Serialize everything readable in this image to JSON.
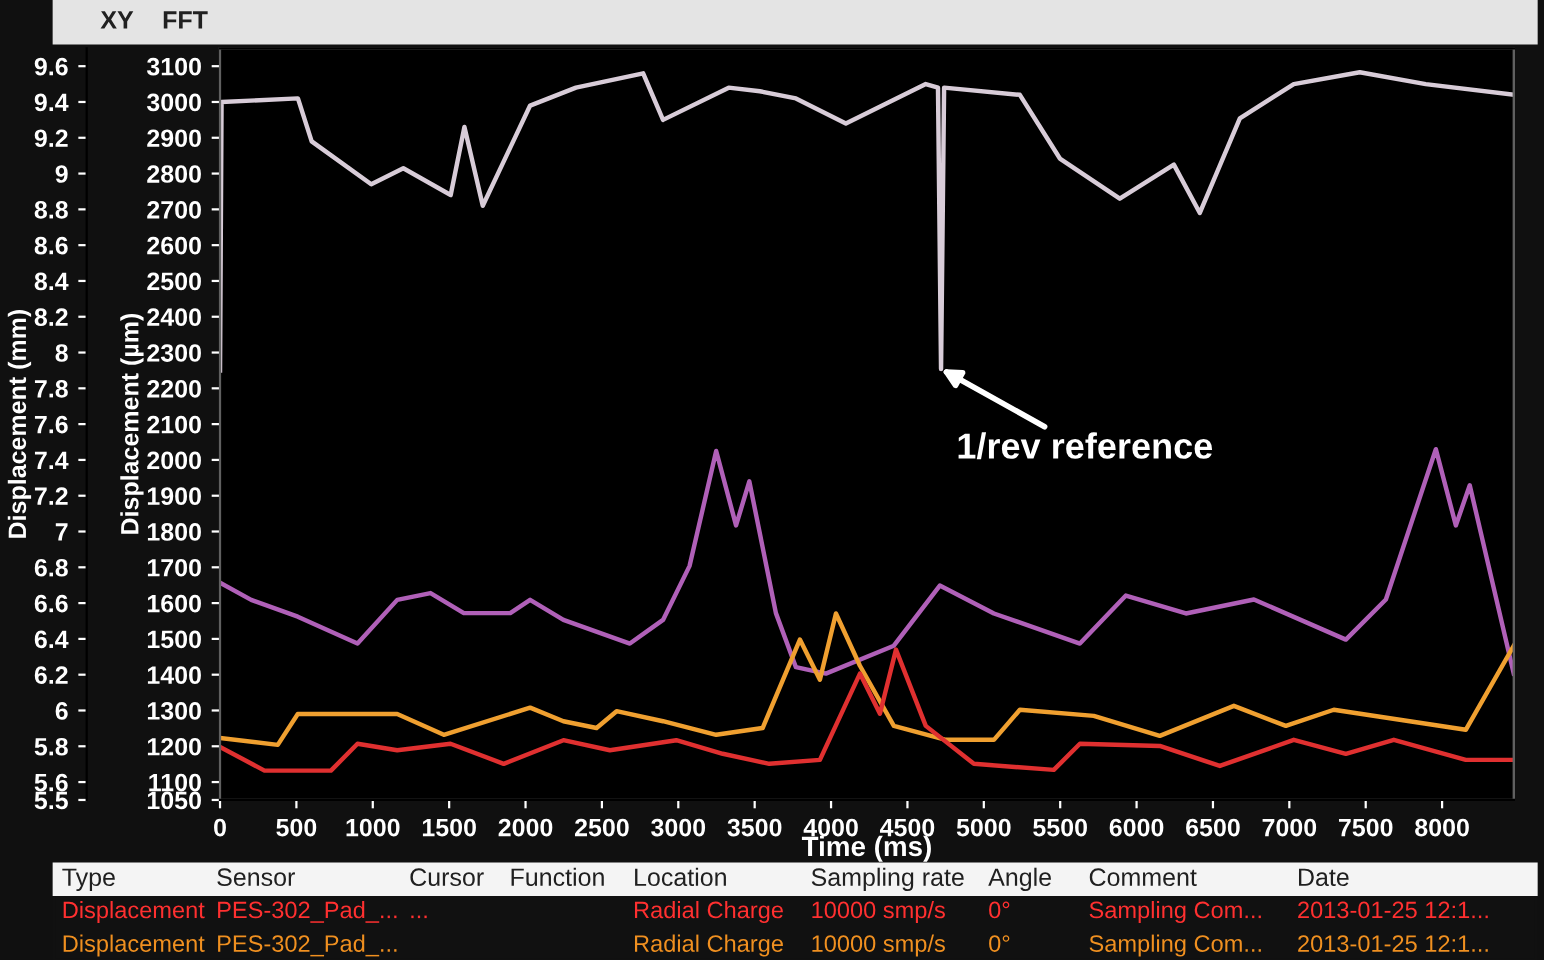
{
  "chart_data": {
    "type": "line",
    "xlabel": "Time (ms)",
    "ylabel": "Displacement (µm)",
    "y2label": "Displacement (mm)",
    "xlim": [
      0,
      8470
    ],
    "xticks": [
      0,
      500,
      1000,
      1500,
      2000,
      2500,
      3000,
      3500,
      4000,
      4500,
      5000,
      5500,
      6000,
      6500,
      7000,
      7500,
      8000
    ],
    "ylim": [
      1050,
      3150
    ],
    "yticks": [
      1050,
      1100,
      1200,
      1300,
      1400,
      1500,
      1600,
      1700,
      1800,
      1900,
      2000,
      2100,
      2200,
      2300,
      2400,
      2500,
      2600,
      2700,
      2800,
      2900,
      3000,
      3100
    ],
    "y2lim": [
      5.5,
      9.7
    ],
    "y2ticks": [
      5.5,
      5.6,
      5.8,
      6,
      6.2,
      6.4,
      6.6,
      6.8,
      7,
      7.2,
      7.4,
      7.6,
      7.8,
      8,
      8.2,
      8.4,
      8.6,
      8.8,
      9,
      9.2,
      9.4,
      9.6
    ],
    "grid": false,
    "legend": false,
    "marker": "none",
    "line_style": "solid",
    "series": [
      {
        "color": "#d8ccd8",
        "x": [
          0,
          10,
          510,
          600,
          990,
          1200,
          1510,
          1600,
          1720,
          2030,
          2330,
          2770,
          2900,
          3330,
          3534,
          3770,
          4097,
          4620,
          4700,
          4720,
          4740,
          5236,
          5498,
          5890,
          6244,
          6414,
          6676,
          7029,
          7461,
          7893,
          8469
        ],
        "values": [
          2250,
          3000,
          3010,
          2890,
          2770,
          2815,
          2740,
          2930,
          2710,
          2990,
          3040,
          3080,
          2950,
          3040,
          3030,
          3010,
          2940,
          3050,
          3040,
          2254,
          3040,
          3020,
          2842,
          2730,
          2825,
          2690,
          2954,
          3050,
          3083,
          3050,
          3020
        ]
      },
      {
        "color": "#b060b8",
        "x": [
          0,
          204,
          509,
          900,
          1160,
          1378,
          1596,
          1900,
          2030,
          2248,
          2683,
          2900,
          3074,
          3248,
          3378,
          3465,
          3639,
          3770,
          3966,
          4411,
          4712,
          5066,
          5629,
          5930,
          6323,
          6768,
          7370,
          7632,
          7959,
          8090,
          8181,
          8469
        ],
        "values": [
          1657,
          1609,
          1562,
          1487,
          1609,
          1628,
          1572,
          1572,
          1609,
          1553,
          1487,
          1553,
          1704,
          2025,
          1817,
          1940,
          1572,
          1421,
          1403,
          1481,
          1649,
          1571,
          1487,
          1621,
          1571,
          1610,
          1498,
          1610,
          2030,
          1817,
          1929,
          1403
        ]
      },
      {
        "color": "#f0a030",
        "x": [
          0,
          378,
          509,
          1000,
          1160,
          1465,
          2030,
          2248,
          2465,
          2596,
          2900,
          3248,
          3552,
          3796,
          3927,
          4032,
          4189,
          4411,
          4752,
          5066,
          5236,
          5720,
          6152,
          6637,
          6977,
          7291,
          7723,
          8155,
          8469
        ],
        "values": [
          1223,
          1204,
          1290,
          1290,
          1290,
          1232,
          1308,
          1270,
          1251,
          1298,
          1270,
          1232,
          1251,
          1498,
          1386,
          1571,
          1425,
          1257,
          1218,
          1218,
          1302,
          1285,
          1229,
          1313,
          1257,
          1302,
          1274,
          1246,
          1481
        ]
      },
      {
        "color": "#e03030",
        "x": [
          0,
          291,
          726,
          900,
          1160,
          1509,
          1857,
          2248,
          2552,
          2987,
          3291,
          3596,
          3927,
          4189,
          4320,
          4425,
          4620,
          4935,
          5458,
          5629,
          6152,
          6545,
          7029,
          7370,
          7684,
          8155,
          8469
        ],
        "values": [
          1198,
          1132,
          1132,
          1207,
          1189,
          1207,
          1151,
          1217,
          1189,
          1217,
          1179,
          1151,
          1162,
          1403,
          1291,
          1470,
          1257,
          1151,
          1134,
          1207,
          1201,
          1145,
          1218,
          1179,
          1218,
          1162,
          1162
        ]
      }
    ],
    "annotations": [
      {
        "text": "1/rev reference",
        "x": 4720,
        "y": 2254
      },
      "XY",
      "FFT",
      "Type",
      "Sensor",
      "Cursor",
      "Function",
      "Location",
      "Sampling rate",
      "Angle",
      "Comment",
      "Date",
      "Displacement",
      "PES-302_Pad_...",
      "...",
      "Radial Charge",
      "10000 smp/s",
      "0°",
      "Sampling Com...",
      "2013-01-25 12:1...",
      "Displacement",
      "PES-302_Pad_...",
      "Radial Charge",
      "10000 smp/s",
      "0°",
      "Sampling Com...",
      "2013-01-25 12:1..."
    ]
  }
}
